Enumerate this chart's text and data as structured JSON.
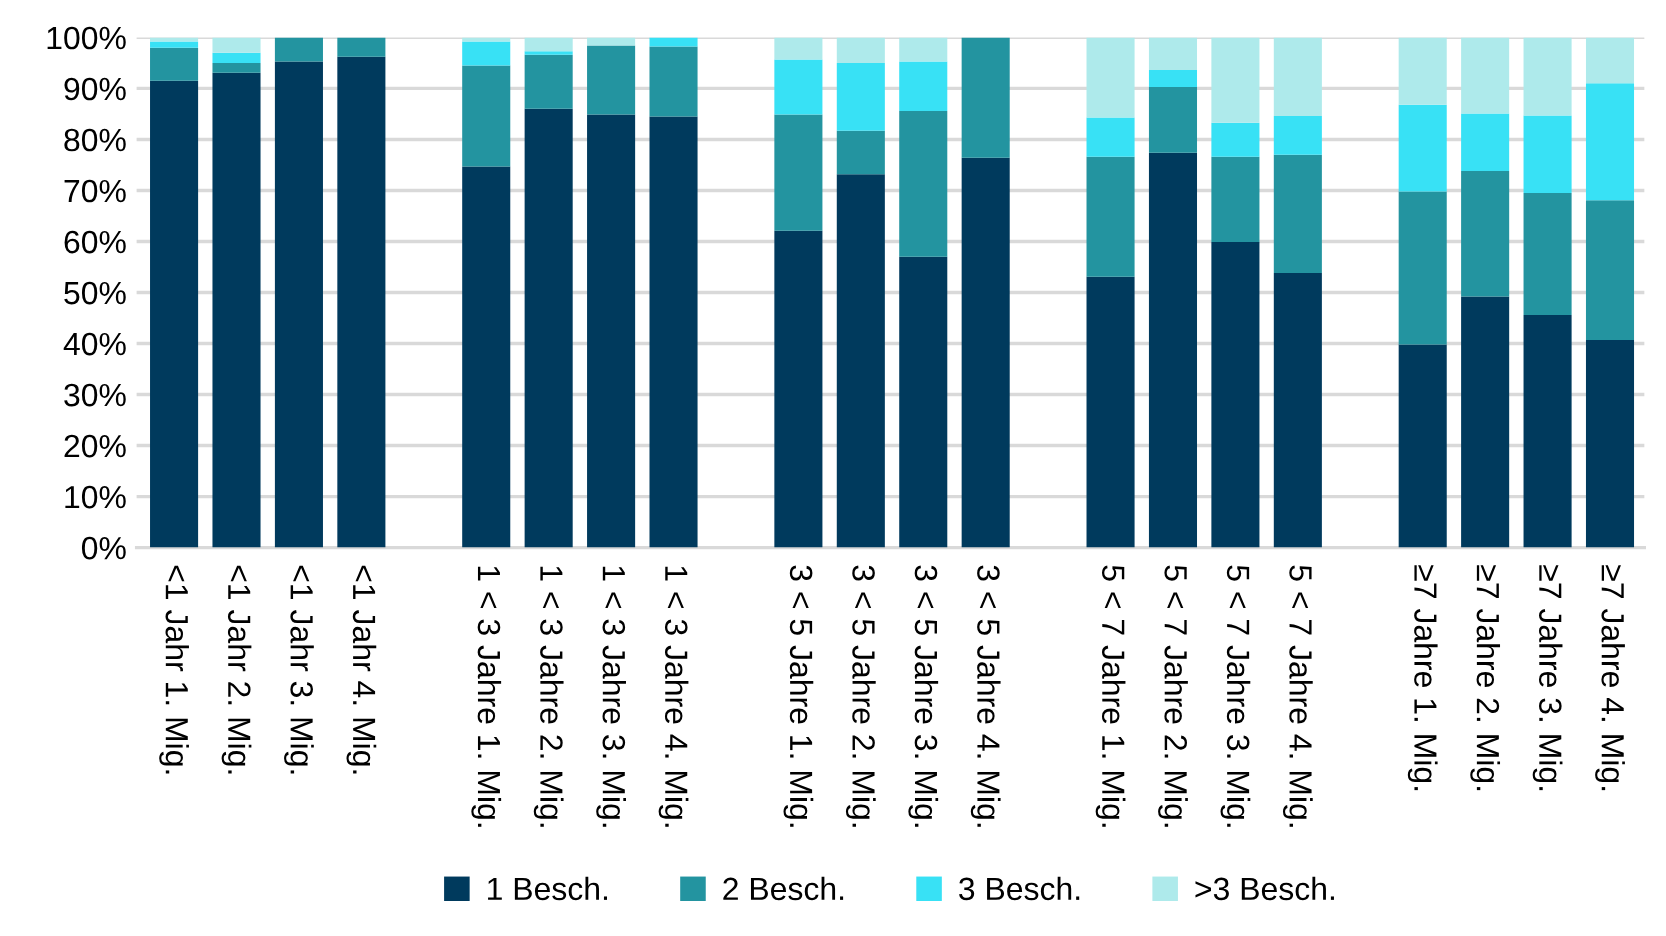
{
  "chart_data": {
    "type": "bar",
    "stacked": true,
    "categories": [
      "<1 Jahr 1. Mig.",
      "<1 Jahr 2. Mig.",
      "<1 Jahr 3. Mig.",
      "<1 Jahr 4. Mig.",
      null,
      "1 < 3 Jahre 1. Mig.",
      "1 < 3 Jahre 2. Mig.",
      "1 < 3 Jahre 3. Mig.",
      "1 < 3 Jahre 4. Mig.",
      null,
      "3 < 5 Jahre 1. Mig.",
      "3 < 5 Jahre 2. Mig.",
      "3 < 5 Jahre 3. Mig.",
      "3 < 5 Jahre 4. Mig.",
      null,
      "5 < 7 Jahre 1. Mig.",
      "5 < 7 Jahre 2. Mig.",
      "5 < 7 Jahre 3. Mig.",
      "5 < 7 Jahre 4. Mig.",
      null,
      "≥7 Jahre 1. Mig.",
      "≥7 Jahre 2. Mig.",
      "≥7 Jahre 3. Mig.",
      "≥7 Jahre 4. Mig."
    ],
    "series": [
      {
        "name": "1 Besch.",
        "color": "#003a5d",
        "values": [
          91.5,
          93.1,
          95.3,
          96.2,
          null,
          74.7,
          86.0,
          84.9,
          84.5,
          null,
          62.1,
          73.2,
          57.0,
          76.4,
          null,
          53.1,
          77.4,
          59.9,
          53.8,
          null,
          39.8,
          49.2,
          45.6,
          40.7
        ]
      },
      {
        "name": "2 Besch.",
        "color": "#2394a0",
        "values": [
          6.5,
          1.9,
          4.7,
          3.8,
          null,
          19.8,
          10.6,
          13.5,
          13.7,
          null,
          22.8,
          8.5,
          28.6,
          23.6,
          null,
          23.5,
          12.9,
          16.7,
          23.2,
          null,
          30.0,
          24.6,
          23.9,
          27.4
        ]
      },
      {
        "name": "3 Besch.",
        "color": "#38e1f5",
        "values": [
          1.2,
          2.0,
          0,
          0,
          null,
          4.7,
          0.7,
          0,
          1.8,
          null,
          10.8,
          13.3,
          9.7,
          0,
          null,
          7.7,
          3.3,
          6.7,
          7.6,
          null,
          17.0,
          11.3,
          15.2,
          22.9
        ]
      },
      {
        "name": ">3 Besch.",
        "color": "#aeeaeb",
        "values": [
          0.8,
          3.0,
          0,
          0,
          null,
          0.8,
          2.7,
          1.6,
          0,
          null,
          4.3,
          5.0,
          4.7,
          0,
          null,
          15.7,
          6.4,
          16.7,
          15.4,
          null,
          13.2,
          14.9,
          15.3,
          9.0
        ]
      }
    ],
    "ylim": [
      0,
      100
    ],
    "yticks": [
      {
        "value": 0,
        "label": "0%"
      },
      {
        "value": 10,
        "label": "10%"
      },
      {
        "value": 20,
        "label": "20%"
      },
      {
        "value": 30,
        "label": "30%"
      },
      {
        "value": 40,
        "label": "40%"
      },
      {
        "value": 50,
        "label": "50%"
      },
      {
        "value": 60,
        "label": "60%"
      },
      {
        "value": 70,
        "label": "70%"
      },
      {
        "value": 80,
        "label": "80%"
      },
      {
        "value": 90,
        "label": "90%"
      },
      {
        "value": 100,
        "label": "100%"
      }
    ],
    "grid": "y",
    "legend": "bottom"
  }
}
